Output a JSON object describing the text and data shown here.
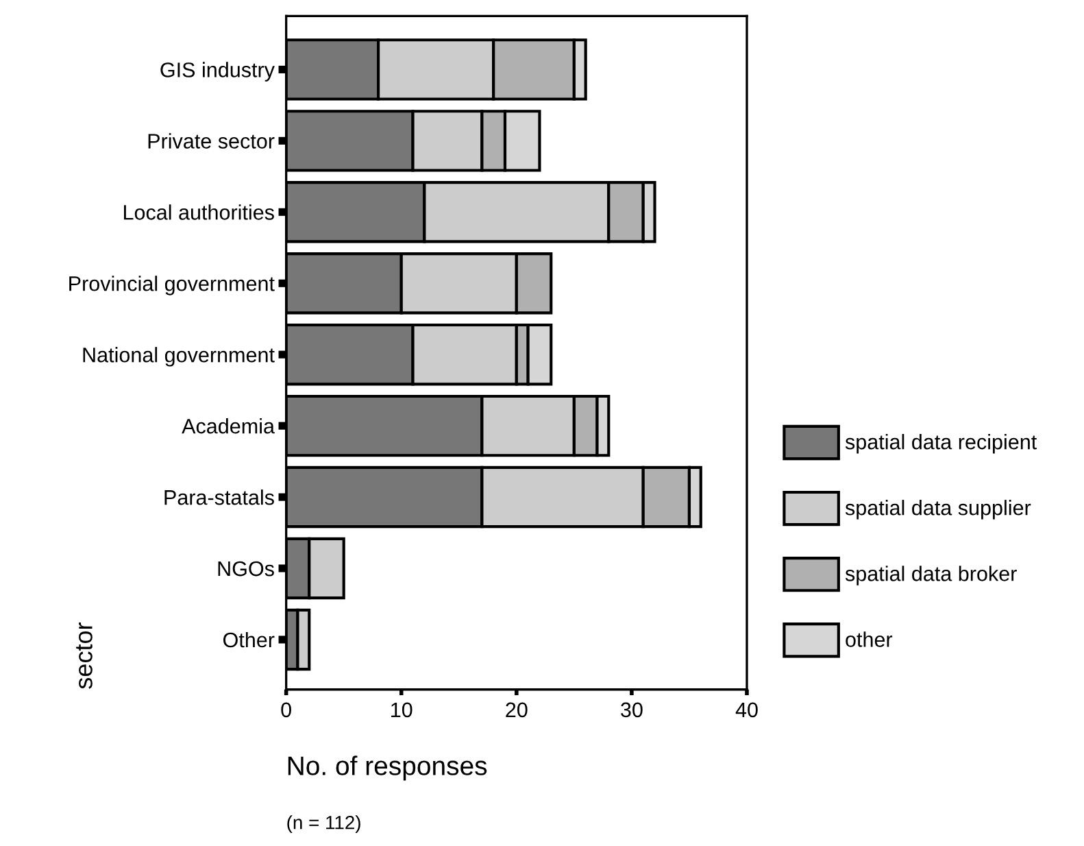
{
  "chart_data": {
    "type": "bar",
    "orientation": "horizontal",
    "stacked": true,
    "xlabel": "No. of responses",
    "ylabel": "sector",
    "annotations": [
      "(n = 112)"
    ],
    "categories": [
      "GIS industry",
      "Private sector",
      "Local authorities",
      "Provincial government",
      "National government",
      "Academia",
      "Para-statals",
      "NGOs",
      "Other"
    ],
    "series": [
      {
        "name": "spatial data recipient",
        "color": "#777777",
        "values": [
          8,
          11,
          12,
          10,
          11,
          17,
          17,
          2,
          1
        ]
      },
      {
        "name": "spatial data supplier",
        "color": "#cccccc",
        "values": [
          10,
          6,
          16,
          10,
          9,
          8,
          14,
          3,
          1
        ]
      },
      {
        "name": "spatial data broker",
        "color": "#b0b0b0",
        "values": [
          7,
          2,
          3,
          3,
          1,
          2,
          4,
          null,
          null
        ]
      },
      {
        "name": "other",
        "color": "#d6d6d6",
        "values": [
          1,
          3,
          1,
          null,
          2,
          1,
          1,
          null,
          null
        ]
      }
    ],
    "xlim": [
      0,
      40
    ],
    "xticks": [
      0,
      10,
      20,
      30,
      40
    ],
    "grid": false,
    "legend": "right"
  }
}
